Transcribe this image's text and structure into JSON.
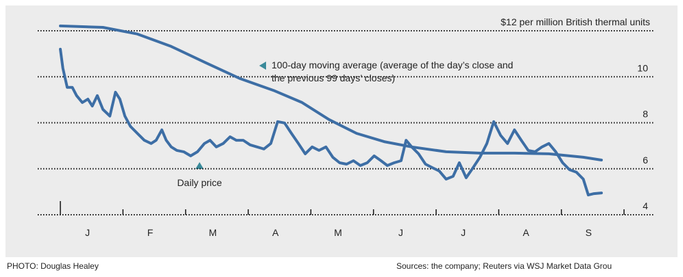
{
  "chart_data": {
    "type": "line",
    "categories": [
      "J",
      "F",
      "M",
      "A",
      "M",
      "J",
      "J",
      "A",
      "S"
    ],
    "xlim": [
      0,
      9
    ],
    "xticks": [
      0,
      1,
      2,
      3,
      4,
      5,
      6,
      7,
      8,
      9
    ],
    "ylim": [
      4,
      12
    ],
    "yticks": [
      4,
      6,
      8,
      10,
      {
        "value": 12,
        "label": "$12 per million British thermal units"
      }
    ],
    "grid": true,
    "series": [
      {
        "name": "Daily price",
        "color": "#3d6ea5",
        "x": [
          0,
          0.04,
          0.11,
          0.19,
          0.26,
          0.35,
          0.44,
          0.51,
          0.59,
          0.68,
          0.79,
          0.88,
          0.95,
          1.03,
          1.12,
          1.23,
          1.34,
          1.45,
          1.53,
          1.62,
          1.69,
          1.77,
          1.86,
          1.97,
          2.08,
          2.19,
          2.3,
          2.39,
          2.49,
          2.6,
          2.71,
          2.81,
          2.92,
          3.03,
          3.14,
          3.25,
          3.36,
          3.47,
          3.58,
          3.69,
          3.8,
          3.91,
          4.02,
          4.13,
          4.24,
          4.35,
          4.46,
          4.57,
          4.68,
          4.79,
          4.9,
          5.01,
          5.12,
          5.22,
          5.33,
          5.44,
          5.52,
          5.61,
          5.72,
          5.83,
          5.94,
          6.05,
          6.16,
          6.27,
          6.37,
          6.48,
          6.59,
          6.7,
          6.81,
          6.92,
          7.03,
          7.14,
          7.25,
          7.36,
          7.47,
          7.58,
          7.69,
          7.8,
          7.91,
          8.02,
          8.13,
          8.24,
          8.35,
          8.43,
          8.52,
          8.64
        ],
        "values": [
          11.2,
          10.37,
          9.54,
          9.54,
          9.18,
          8.88,
          9.03,
          8.73,
          9.18,
          8.58,
          8.29,
          9.33,
          9.03,
          8.29,
          7.84,
          7.54,
          7.24,
          7.1,
          7.24,
          7.69,
          7.24,
          6.95,
          6.8,
          6.74,
          6.56,
          6.74,
          7.1,
          7.24,
          6.95,
          7.1,
          7.39,
          7.24,
          7.24,
          7.04,
          6.95,
          6.86,
          7.1,
          8.05,
          7.99,
          7.54,
          7.1,
          6.65,
          6.95,
          6.8,
          6.95,
          6.5,
          6.26,
          6.2,
          6.35,
          6.14,
          6.26,
          6.56,
          6.35,
          6.14,
          6.26,
          6.35,
          7.24,
          6.95,
          6.65,
          6.2,
          6.05,
          5.9,
          5.55,
          5.67,
          6.26,
          5.61,
          6.05,
          6.5,
          7.1,
          8.05,
          7.45,
          7.1,
          7.69,
          7.24,
          6.8,
          6.74,
          6.95,
          7.1,
          6.74,
          6.26,
          5.96,
          5.85,
          5.55,
          4.86,
          4.92,
          4.95
        ]
      },
      {
        "name": "100-day moving average (average of the day’s close and the previous 99 days’ closes)",
        "color": "#3d6ea5",
        "x": [
          0,
          0.68,
          1.23,
          1.77,
          2.32,
          2.87,
          3.42,
          3.86,
          4.29,
          4.73,
          5.17,
          5.61,
          6.16,
          6.7,
          7.25,
          7.8,
          8.35,
          8.64
        ],
        "values": [
          12.21,
          12.15,
          11.86,
          11.32,
          10.61,
          9.92,
          9.39,
          8.88,
          8.14,
          7.54,
          7.18,
          6.95,
          6.74,
          6.68,
          6.68,
          6.65,
          6.5,
          6.38
        ]
      }
    ],
    "credit": "PHOTO: Douglas Healey",
    "source": "Sources: the company; Reuters via WSJ Market Data Grou"
  }
}
